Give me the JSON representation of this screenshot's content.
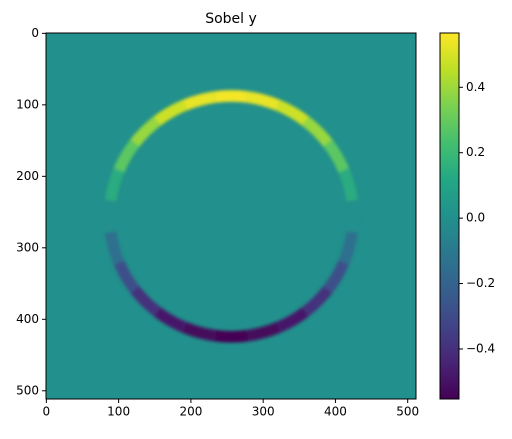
{
  "chart_data": {
    "type": "heatmap",
    "title": "Sobel y",
    "xlim": [
      -0.5,
      511.5
    ],
    "ylim": [
      511.5,
      -0.5
    ],
    "xticks": [
      0,
      100,
      200,
      300,
      400,
      500
    ],
    "yticks": [
      0,
      100,
      200,
      300,
      400,
      500
    ],
    "background_value": 0,
    "x": [
      256,
      300,
      341,
      376,
      403,
      420,
      426,
      420,
      403,
      376,
      341,
      300,
      256,
      212,
      171,
      136,
      109,
      92,
      86,
      92,
      109,
      136,
      171,
      212
    ],
    "y": [
      86,
      92,
      109,
      136,
      171,
      212,
      256,
      300,
      341,
      376,
      403,
      420,
      426,
      420,
      403,
      376,
      341,
      300,
      256,
      212,
      171,
      136,
      109,
      92
    ],
    "values": [
      0.55,
      0.53,
      0.48,
      0.39,
      0.28,
      0.14,
      0,
      -0.14,
      -0.28,
      -0.39,
      -0.48,
      -0.53,
      -0.55,
      -0.53,
      -0.48,
      -0.39,
      -0.28,
      -0.14,
      0,
      0.14,
      0.28,
      0.39,
      0.48,
      0.53
    ],
    "colormap": "viridis",
    "clim": [
      -0.553,
      0.566
    ],
    "cticks": [
      {
        "value": -0.4,
        "label": "−0.4"
      },
      {
        "value": -0.2,
        "label": "−0.2"
      },
      {
        "value": 0,
        "label": "0.0"
      },
      0.2,
      0.4
    ]
  }
}
